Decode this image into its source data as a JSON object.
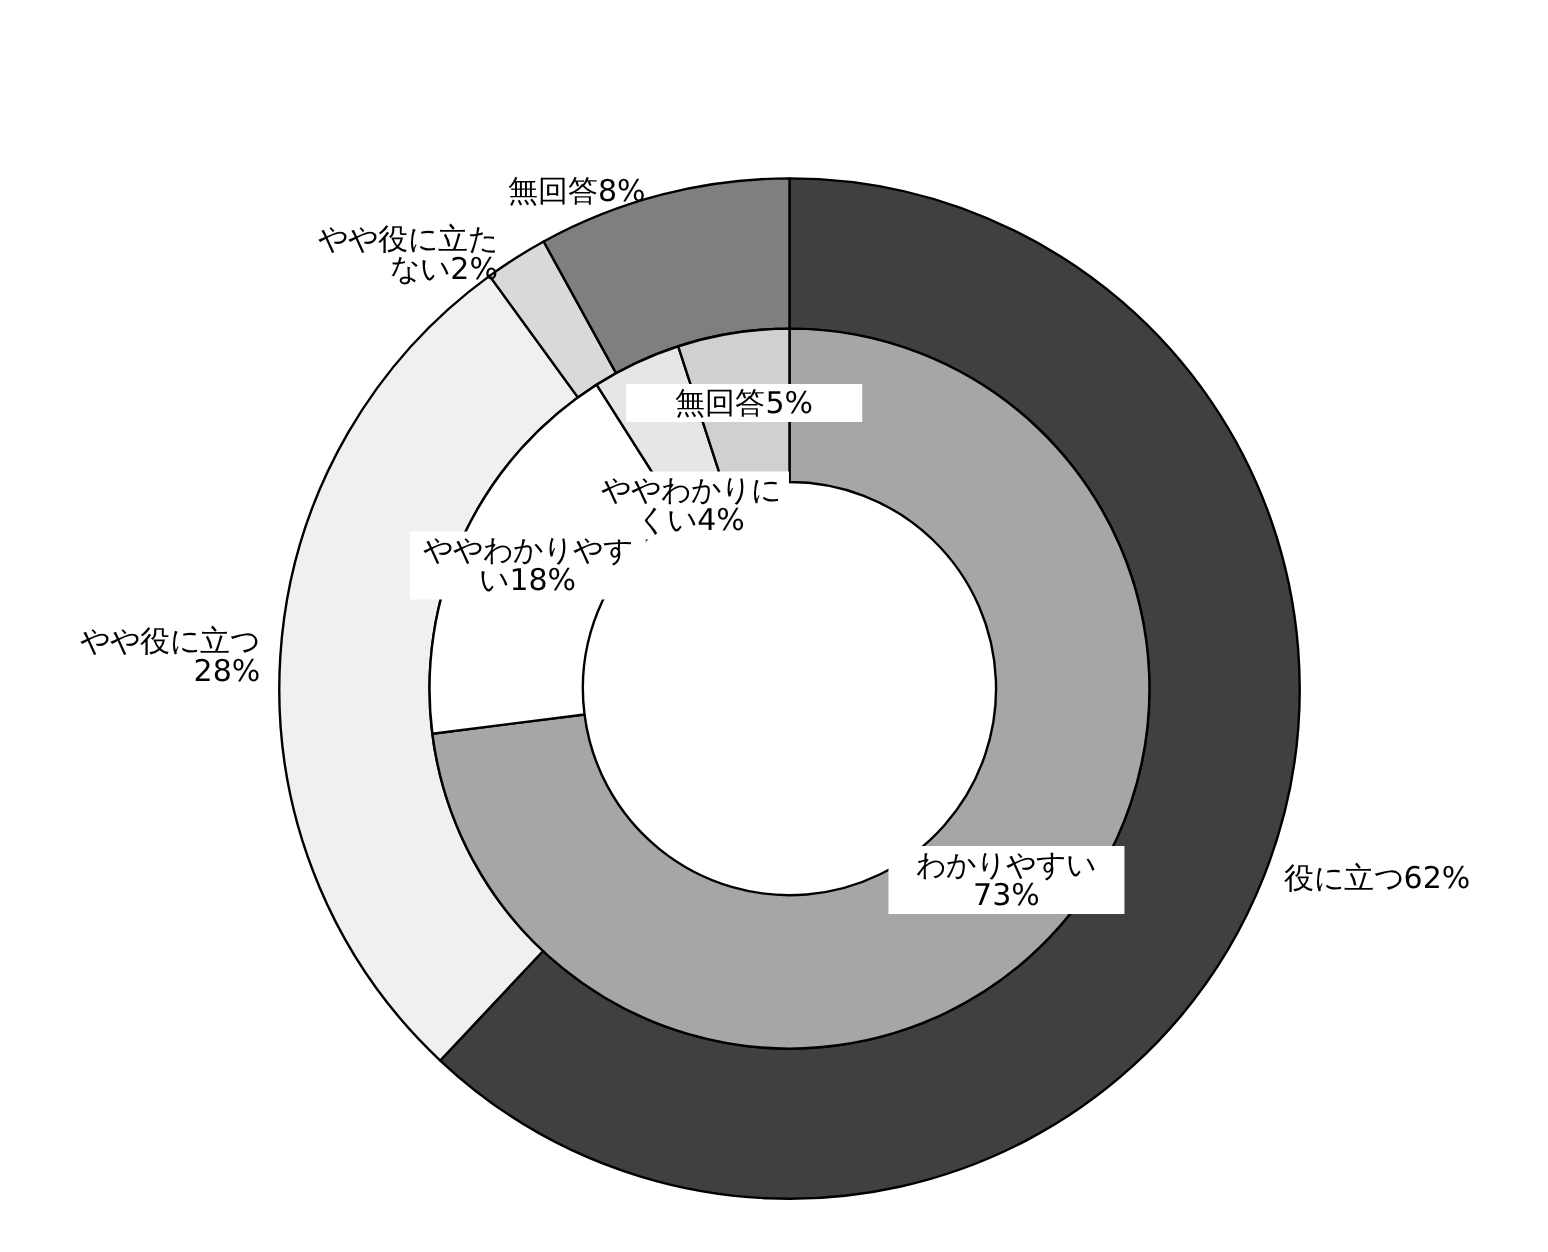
{
  "chart_data": [
    {
      "type": "donut",
      "categories": [
        "役に立つ",
        "やや役に立つ",
        "やや役に立たない",
        "無回答"
      ],
      "values": [
        62,
        28,
        2,
        8
      ],
      "colors": [
        "#404040",
        "#f0f0f0",
        "#d9d9d9",
        "#7f7f7f"
      ],
      "value_labels": [
        "62%",
        "28%",
        "2%",
        "8%"
      ]
    },
    {
      "type": "donut",
      "categories": [
        "わかりやすい",
        "ややわかりやすい",
        "ややわかりにくい",
        "無回答"
      ],
      "values": [
        73,
        18,
        4,
        5
      ],
      "colors": [
        "#a6a6a6",
        "#ffffff",
        "#e6e6e6",
        "#d0d0d0"
      ],
      "value_labels": [
        "73%",
        "18%",
        "4%",
        "5%"
      ]
    }
  ]
}
